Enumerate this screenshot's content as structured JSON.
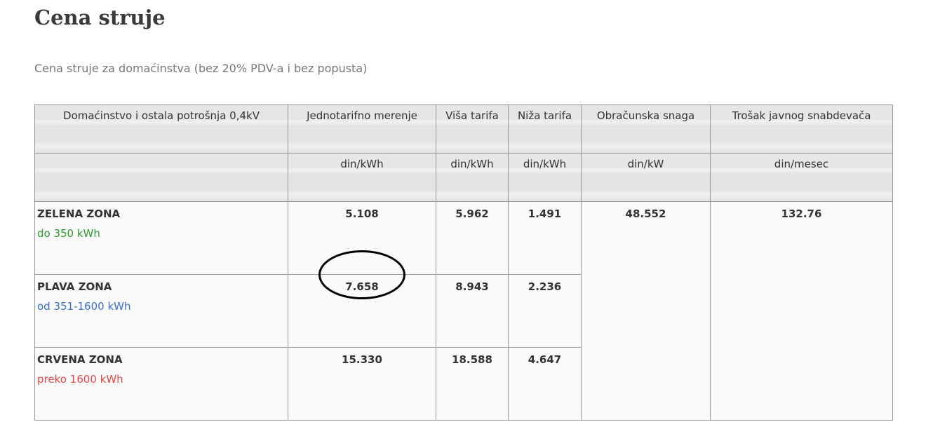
{
  "title": "Cena struje",
  "subtitle": "Cena struje za domaćinstva (bez 20% PDV-a i bez popusta)",
  "table": {
    "headers": [
      "Domaćinstvo i ostala potrošnja 0,4kV",
      "Jednotarifno merenje",
      "Viša tarifa",
      "Niža tarifa",
      "Obračunska snaga",
      "Trošak javnog snabdevača"
    ],
    "units": [
      "",
      "din/kWh",
      "din/kWh",
      "din/kWh",
      "din/kW",
      "din/mesec"
    ],
    "rows": [
      {
        "zone": "ZELENA ZONA",
        "range": "do 350 kWh",
        "color": "#2e9a2e",
        "single": "5.108",
        "high": "5.962",
        "low": "1.491"
      },
      {
        "zone": "PLAVA ZONA",
        "range": "od 351-1600 kWh",
        "color": "#3a6fc4",
        "single": "7.658",
        "high": "8.943",
        "low": "2.236"
      },
      {
        "zone": "CRVENA ZONA",
        "range": "preko 1600 kWh",
        "color": "#e04848",
        "single": "15.330",
        "high": "18.588",
        "low": "4.647"
      }
    ],
    "power": "48.552",
    "supplier": "132.76"
  }
}
